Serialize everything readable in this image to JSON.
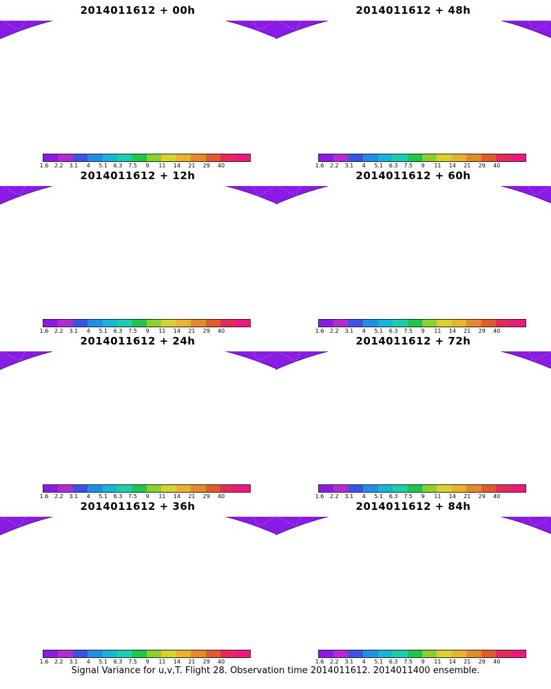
{
  "panels": [
    {
      "title": "2014011612 + 00h",
      "intensity": 0.2,
      "gaps": true
    },
    {
      "title": "2014011612 + 48h",
      "intensity": 0.7,
      "gaps": false
    },
    {
      "title": "2014011612 + 12h",
      "intensity": 0.3,
      "gaps": true
    },
    {
      "title": "2014011612 + 60h",
      "intensity": 0.75,
      "gaps": false
    },
    {
      "title": "2014011612 + 24h",
      "intensity": 0.4,
      "gaps": true
    },
    {
      "title": "2014011612 + 72h",
      "intensity": 0.85,
      "gaps": false
    },
    {
      "title": "2014011612 + 36h",
      "intensity": 0.55,
      "gaps": false
    },
    {
      "title": "2014011612 + 84h",
      "intensity": 0.9,
      "gaps": false
    }
  ],
  "colorbar": {
    "colors": [
      "#8a1be6",
      "#b62ad6",
      "#3a53e2",
      "#1e90e8",
      "#16b6d8",
      "#18cfae",
      "#1cc84c",
      "#8ad22a",
      "#d8d22a",
      "#e8b42a",
      "#e48a2a",
      "#e45a2a",
      "#e42a5a",
      "#f0167e"
    ],
    "labels": [
      "1.6",
      "2.2",
      "3.1",
      "4",
      "5.1",
      "6.3",
      "7.5",
      "9",
      "11",
      "14",
      "21",
      "29",
      "40"
    ]
  },
  "caption": "Signal Variance for u,v,T. Flight 28. Observation time 2014011612. 2014011400 ensemble."
}
